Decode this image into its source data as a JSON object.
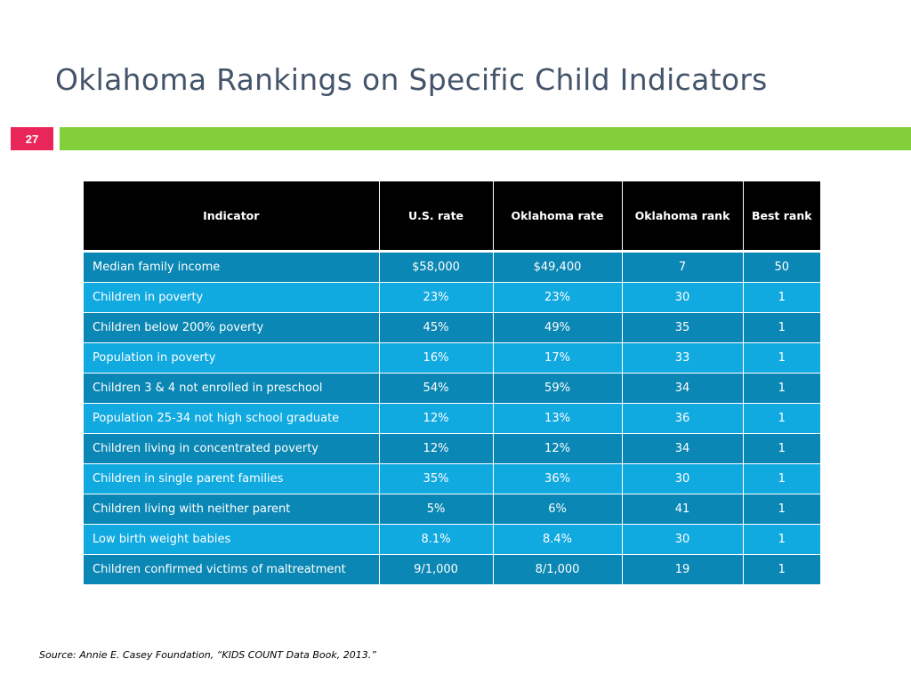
{
  "title": "Oklahoma Rankings on Specific Child Indicators",
  "slide_number": "27",
  "colors": {
    "title": "#44546a",
    "slide_number_bg": "#e8265a",
    "bar": "#82cf3b",
    "header_bg": "#000000",
    "row_dark": "#0a87b4",
    "row_light": "#10a9e0"
  },
  "table": {
    "headers": [
      "Indicator",
      "U.S. rate",
      "Oklahoma rate",
      "Oklahoma rank",
      "Best rank"
    ],
    "rows": [
      [
        "Median family income",
        "$58,000",
        "$49,400",
        "7",
        "50"
      ],
      [
        "Children in poverty",
        "23%",
        "23%",
        "30",
        "1"
      ],
      [
        "Children below 200% poverty",
        "45%",
        "49%",
        "35",
        "1"
      ],
      [
        "Population in poverty",
        "16%",
        "17%",
        "33",
        "1"
      ],
      [
        "Children 3 & 4 not enrolled in preschool",
        "54%",
        "59%",
        "34",
        "1"
      ],
      [
        "Population 25-34 not high school graduate",
        "12%",
        "13%",
        "36",
        "1"
      ],
      [
        "Children living in concentrated poverty",
        "12%",
        "12%",
        "34",
        "1"
      ],
      [
        "Children in single parent families",
        "35%",
        "36%",
        "30",
        "1"
      ],
      [
        "Children living with neither parent",
        "5%",
        "6%",
        "41",
        "1"
      ],
      [
        "Low birth weight babies",
        "8.1%",
        "8.4%",
        "30",
        "1"
      ],
      [
        "Children confirmed victims of maltreatment",
        "9/1,000",
        "8/1,000",
        "19",
        "1"
      ]
    ]
  },
  "source": "Source:  Annie E. Casey Foundation, “KIDS COUNT Data Book, 2013.”"
}
